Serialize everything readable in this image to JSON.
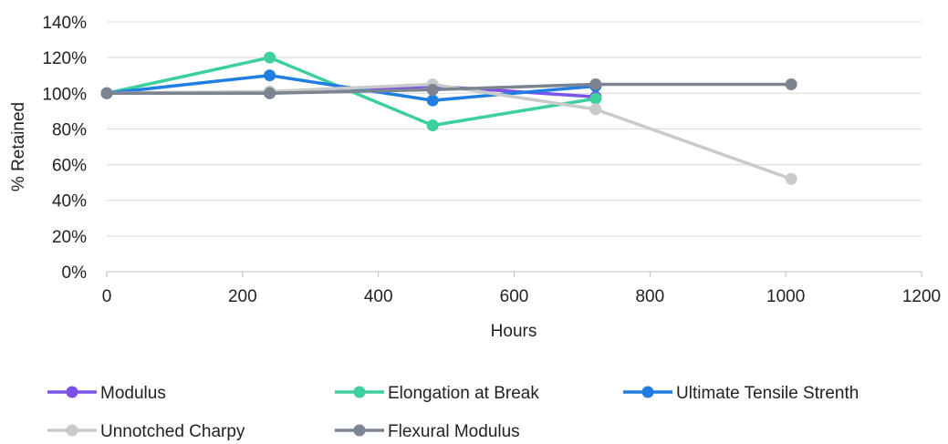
{
  "chart_data": {
    "type": "line",
    "title": "",
    "xlabel": "Hours",
    "ylabel": "% Retained",
    "xlim": [
      0,
      1200
    ],
    "ylim": [
      0,
      140
    ],
    "x_ticks": [
      "0",
      "200",
      "400",
      "600",
      "800",
      "1000",
      "1200"
    ],
    "x_tick_values": [
      0,
      200,
      400,
      600,
      800,
      1000,
      1200
    ],
    "y_ticks": [
      "0%",
      "20%",
      "40%",
      "60%",
      "80%",
      "100%",
      "120%",
      "140%"
    ],
    "y_tick_values": [
      0,
      20,
      40,
      60,
      80,
      100,
      120,
      140
    ],
    "grid": "horizontal",
    "legend_position": "bottom",
    "series": [
      {
        "name": "Modulus",
        "color": "#7b52e8",
        "x": [
          0,
          240,
          480,
          720
        ],
        "y": [
          100,
          100,
          104,
          98
        ]
      },
      {
        "name": "Elongation at Break",
        "color": "#3ecf9e",
        "x": [
          0,
          240,
          480,
          720
        ],
        "y": [
          100,
          120,
          82,
          97
        ]
      },
      {
        "name": "Ultimate Tensile Strenth",
        "color": "#1f7ee0",
        "x": [
          0,
          240,
          480,
          720
        ],
        "y": [
          100,
          110,
          96,
          104
        ]
      },
      {
        "name": "Unnotched Charpy",
        "color": "#c8cacb",
        "x": [
          0,
          240,
          480,
          720,
          1008
        ],
        "y": [
          100,
          101,
          105,
          91,
          52
        ]
      },
      {
        "name": "Flexural Modulus",
        "color": "#7b8490",
        "x": [
          0,
          240,
          480,
          720,
          1008
        ],
        "y": [
          100,
          100,
          102,
          105,
          105
        ]
      }
    ]
  }
}
